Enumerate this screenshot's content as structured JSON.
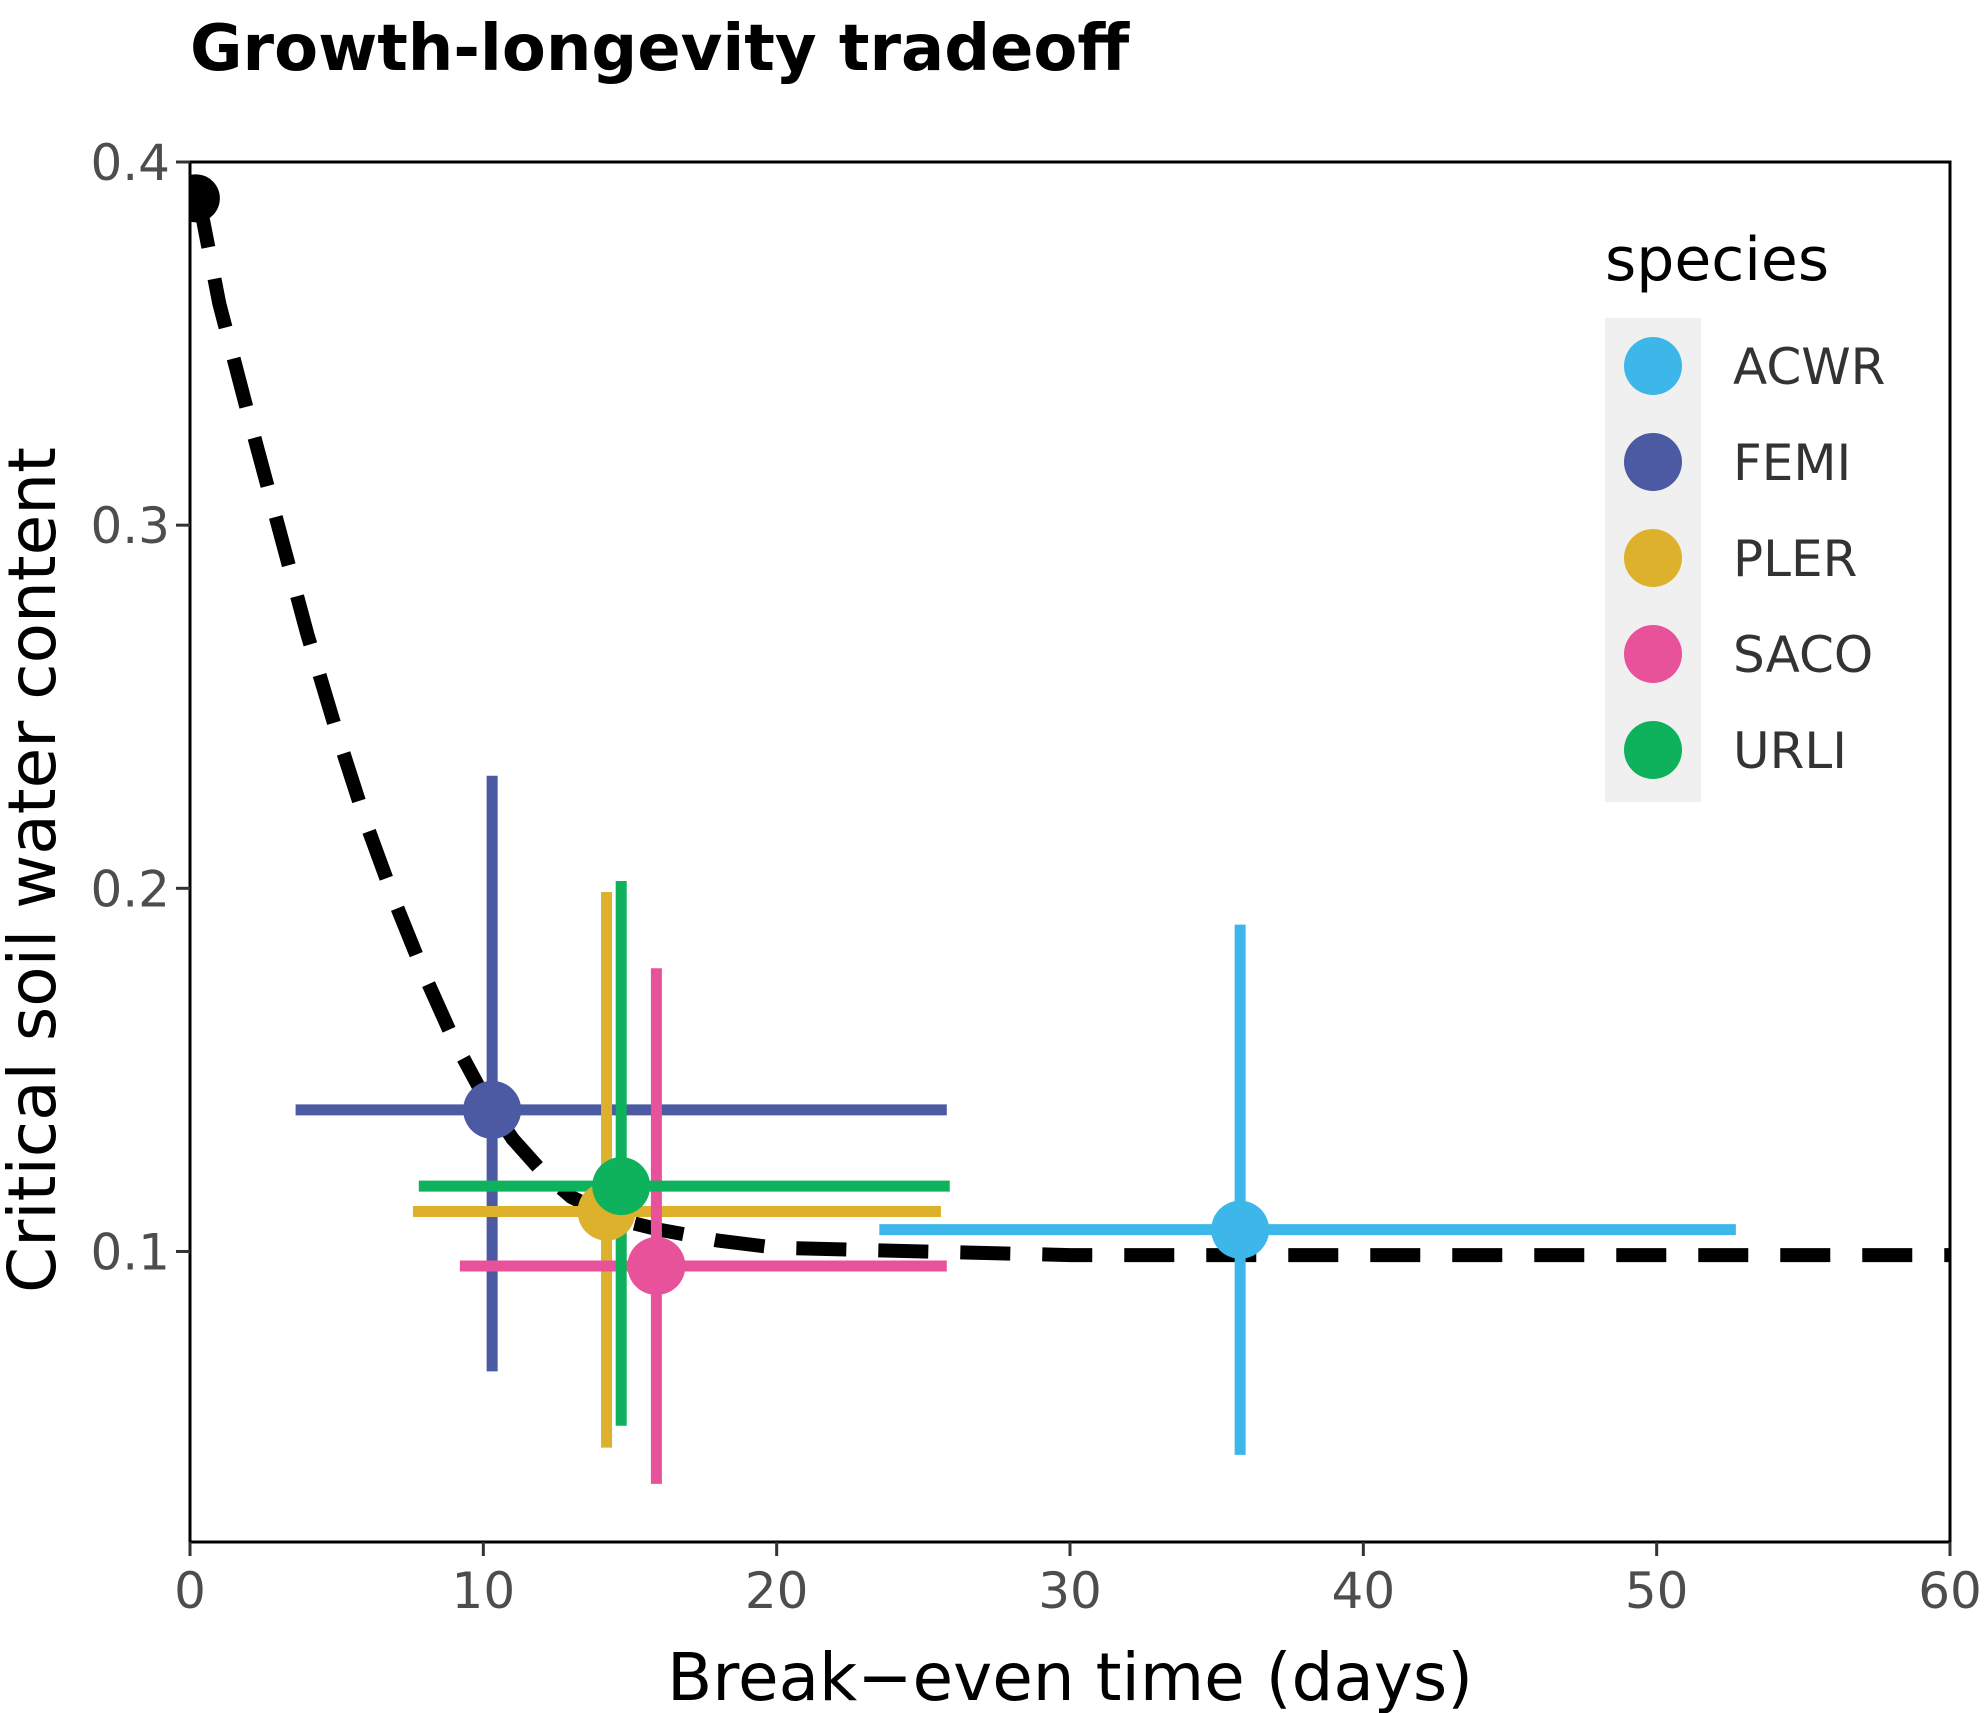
{
  "chart_data": {
    "type": "scatter",
    "title": "Growth-longevity tradeoff",
    "xlabel": "Break−even time (days)",
    "ylabel": "Critical soil water content",
    "xlim": [
      0,
      60
    ],
    "ylim": [
      0.02,
      0.4
    ],
    "xticks": [
      0,
      10,
      20,
      30,
      40,
      50,
      60
    ],
    "yticks": [
      0.1,
      0.2,
      0.3,
      0.4
    ],
    "xtick_labels": [
      "0",
      "10",
      "20",
      "30",
      "40",
      "50",
      "60"
    ],
    "ytick_labels": [
      "0.1",
      "0.2",
      "0.3",
      "0.4"
    ],
    "grid": false,
    "legend": {
      "title": "species",
      "position": "top-right",
      "entries": [
        {
          "label": "ACWR",
          "color": "#3DB7E9"
        },
        {
          "label": "FEMI",
          "color": "#4B5AA3"
        },
        {
          "label": "PLER",
          "color": "#DDB12B"
        },
        {
          "label": "SACO",
          "color": "#E8529A"
        },
        {
          "label": "URLI",
          "color": "#0EB15C"
        }
      ]
    },
    "series": [
      {
        "name": "ACWR",
        "color": "#3DB7E9",
        "x": 35.8,
        "y": 0.106,
        "x_range": [
          23.5,
          52.7
        ],
        "y_range": [
          0.044,
          0.19
        ]
      },
      {
        "name": "FEMI",
        "color": "#4B5AA3",
        "x": 10.3,
        "y": 0.139,
        "x_range": [
          3.6,
          25.8
        ],
        "y_range": [
          0.067,
          0.231
        ]
      },
      {
        "name": "PLER",
        "color": "#DDB12B",
        "x": 14.2,
        "y": 0.111,
        "x_range": [
          7.6,
          25.6
        ],
        "y_range": [
          0.046,
          0.199
        ]
      },
      {
        "name": "SACO",
        "color": "#E8529A",
        "x": 15.9,
        "y": 0.096,
        "x_range": [
          9.2,
          25.8
        ],
        "y_range": [
          0.036,
          0.178
        ]
      },
      {
        "name": "URLI",
        "color": "#0EB15C",
        "x": 14.7,
        "y": 0.118,
        "x_range": [
          7.8,
          25.9
        ],
        "y_range": [
          0.052,
          0.202
        ]
      }
    ],
    "fit_curve": {
      "style": "dashed",
      "color": "#000000",
      "points": [
        [
          0.3,
          0.39
        ],
        [
          1,
          0.361
        ],
        [
          2,
          0.33
        ],
        [
          3,
          0.3
        ],
        [
          4,
          0.27
        ],
        [
          5,
          0.243
        ],
        [
          6,
          0.218
        ],
        [
          7,
          0.196
        ],
        [
          8,
          0.176
        ],
        [
          9,
          0.158
        ],
        [
          10,
          0.143
        ],
        [
          11,
          0.131
        ],
        [
          12,
          0.122
        ],
        [
          13,
          0.115
        ],
        [
          14,
          0.111
        ],
        [
          15,
          0.108
        ],
        [
          16,
          0.106
        ],
        [
          18,
          0.103
        ],
        [
          20,
          0.101
        ],
        [
          25,
          0.1
        ],
        [
          30,
          0.099
        ],
        [
          40,
          0.099
        ],
        [
          60,
          0.099
        ]
      ],
      "start_marker": {
        "x": 0.2,
        "y": 0.39,
        "color": "#000000"
      }
    }
  }
}
